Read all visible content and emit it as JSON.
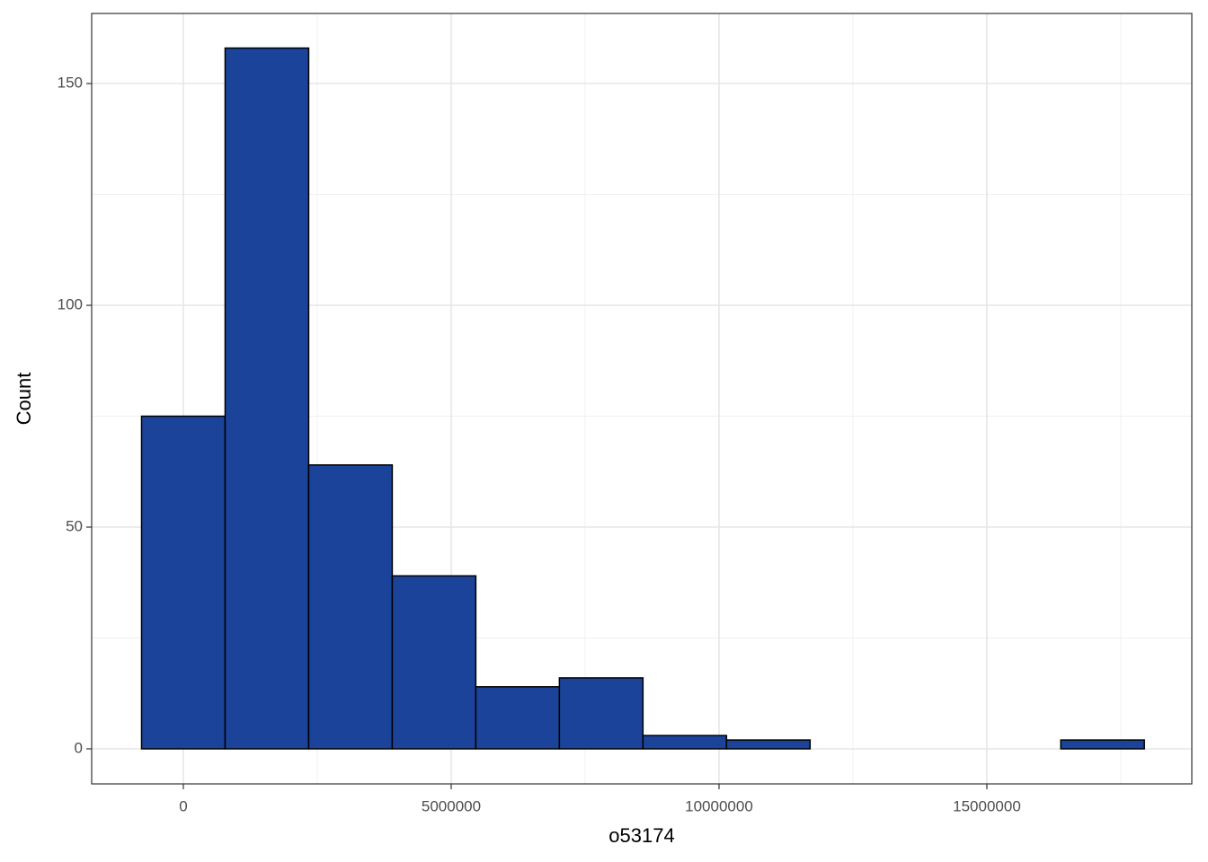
{
  "chart_data": {
    "type": "histogram",
    "x_label": "o53174",
    "y_label": "Count",
    "bins": [
      -780000,
      780000,
      2340000,
      3900000,
      5460000,
      7020000,
      8580000,
      10140000,
      11700000,
      13260000,
      14820000,
      16380000,
      17940000
    ],
    "values": [
      75,
      158,
      64,
      39,
      14,
      16,
      3,
      2,
      0,
      0,
      0,
      2
    ],
    "color": "#1a4399",
    "edge_color": "#000000",
    "xlim": [
      -1711000,
      18826000
    ],
    "ylim": [
      -7.9,
      165.8
    ],
    "xticks": [
      0,
      5000000,
      10000000,
      15000000
    ],
    "yticks": [
      0,
      50,
      100,
      150
    ],
    "x_minor_ticks": [
      -2500000,
      2500000,
      7500000,
      12500000,
      17500000
    ],
    "y_minor_ticks": [
      25,
      75,
      125
    ],
    "grid": true
  }
}
